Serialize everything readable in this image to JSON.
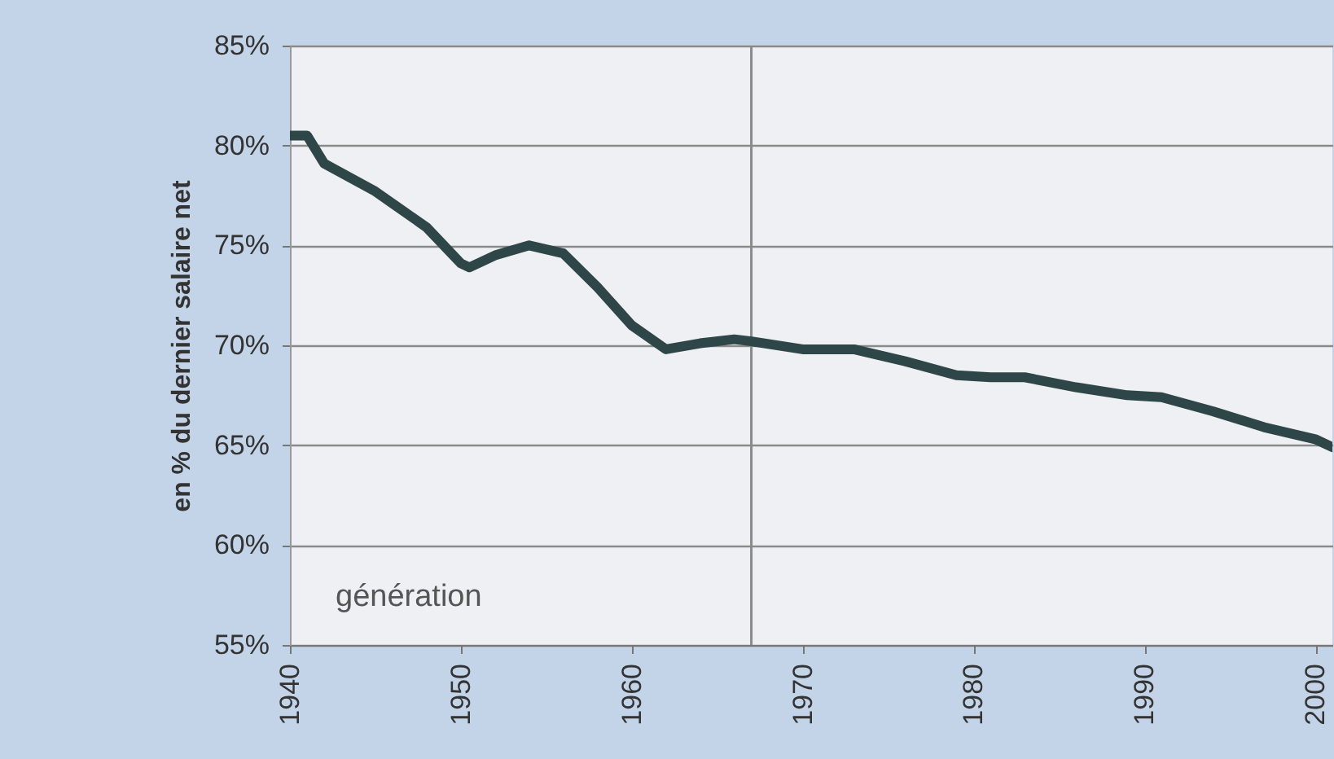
{
  "chart_data": {
    "type": "line",
    "ylabel": "en % du dernier salaire net",
    "annotations": [
      "génération"
    ],
    "x": [
      1940,
      1941,
      1942,
      1945,
      1948,
      1950,
      1950.5,
      1952,
      1954,
      1956,
      1958,
      1960,
      1962,
      1964,
      1966,
      1967,
      1970,
      1973,
      1976,
      1979,
      1981,
      1983,
      1986,
      1989,
      1991,
      1994,
      1997,
      2000,
      2001
    ],
    "series": [
      {
        "color": "#2f4648",
        "values": [
          80.5,
          80.5,
          79.1,
          77.7,
          75.9,
          74.1,
          73.9,
          74.5,
          75.0,
          74.6,
          72.9,
          71.0,
          69.8,
          70.1,
          70.3,
          70.2,
          69.8,
          69.8,
          69.2,
          68.5,
          68.4,
          68.4,
          67.9,
          67.5,
          67.4,
          66.7,
          65.9,
          65.3,
          64.9
        ]
      }
    ],
    "xlim": [
      1940,
      2001
    ],
    "xticks": [
      1940,
      1950,
      1960,
      1970,
      1980,
      1990,
      2000
    ],
    "ylim": [
      55,
      85
    ],
    "yticks": [
      {
        "value": 55,
        "label": "55%"
      },
      {
        "value": 60,
        "label": "60%"
      },
      {
        "value": 65,
        "label": "65%"
      },
      {
        "value": 70,
        "label": "70%"
      },
      {
        "value": 75,
        "label": "75%"
      },
      {
        "value": 80,
        "label": "80%"
      },
      {
        "value": 85,
        "label": "85%"
      }
    ],
    "grid": "y",
    "ref_lines": [
      {
        "axis": "x",
        "value": 1967,
        "color": "#8a8a8a"
      }
    ]
  }
}
